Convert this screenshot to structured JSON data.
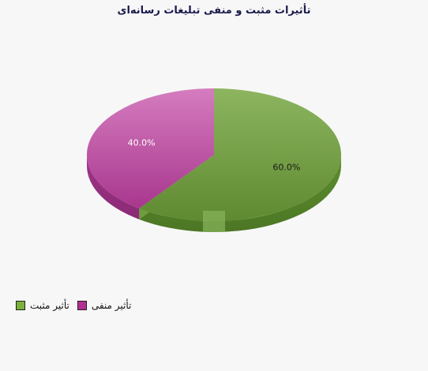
{
  "chart_data": {
    "type": "pie",
    "title": "تأثیرات مثبت و منفی تبلیغات رسانه‌ای",
    "slices": [
      {
        "name": "تأثیر مثبت",
        "value": 60.0,
        "label": "60.0%",
        "color": "#6e9a3d"
      },
      {
        "name": "تأثیر منفی",
        "value": 40.0,
        "label": "40.0%",
        "color": "#b8449e"
      }
    ],
    "legend_position": "bottom-left"
  }
}
